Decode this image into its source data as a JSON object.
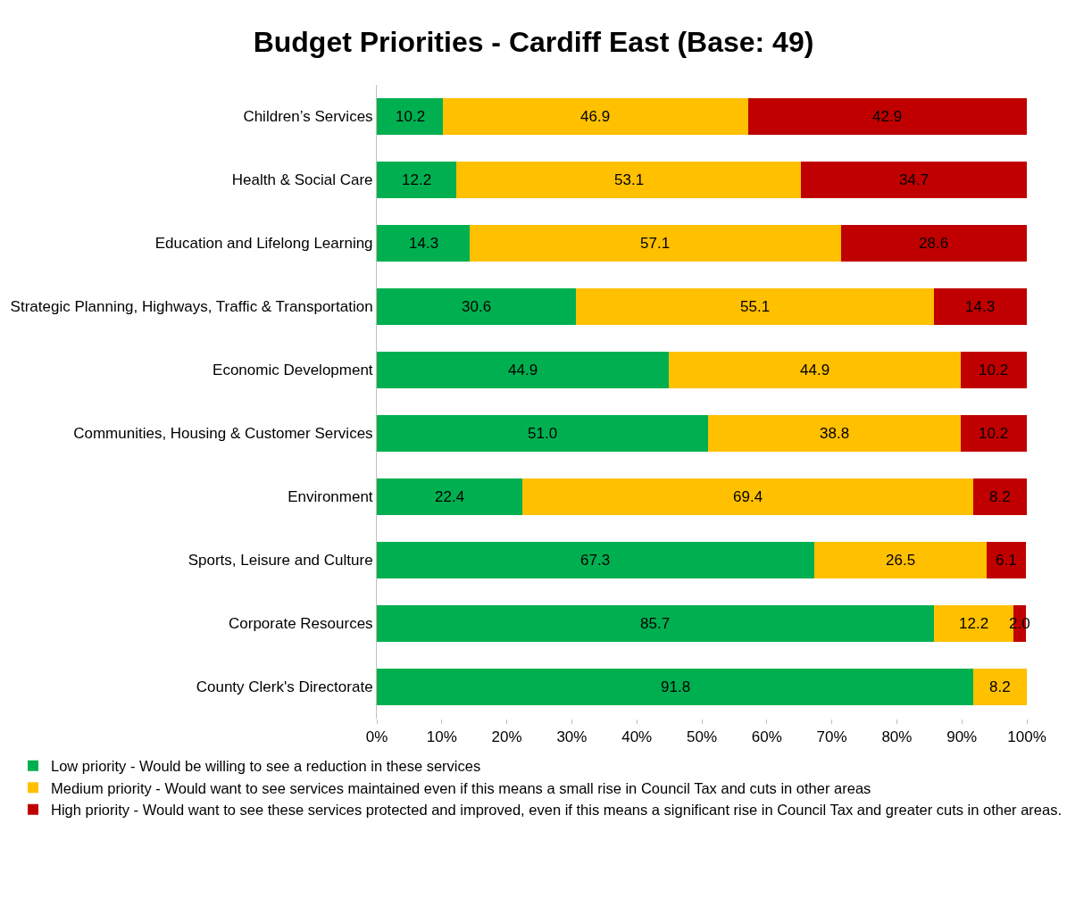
{
  "chart_data": {
    "type": "bar",
    "orientation": "horizontal",
    "stacked": true,
    "title": "Budget Priorities - Cardiff East (Base: 49)",
    "categories": [
      "Children’s Services",
      "Health & Social Care",
      "Education and Lifelong Learning",
      "Strategic Planning, Highways, Traffic & Transportation",
      "Economic Development",
      "Communities, Housing & Customer Services",
      "Environment",
      "Sports, Leisure and Culture",
      "Corporate Resources",
      "County Clerk's Directorate"
    ],
    "series": [
      {
        "name": "Low priority - Would be willing to see a reduction in these services",
        "color": "#00b050",
        "values": [
          10.2,
          12.2,
          14.3,
          30.6,
          44.9,
          51.0,
          22.4,
          67.3,
          85.7,
          91.8
        ],
        "value_labels": [
          "10.2",
          "12.2",
          "14.3",
          "30.6",
          "44.9",
          "51.0",
          "22.4",
          "67.3",
          "85.7",
          "91.8"
        ]
      },
      {
        "name": "Medium priority - Would want to see services maintained even if this means a small rise in Council Tax and cuts in other areas",
        "color": "#ffc000",
        "values": [
          46.9,
          53.1,
          57.1,
          55.1,
          44.9,
          38.8,
          69.4,
          26.5,
          12.2,
          8.2
        ],
        "value_labels": [
          "46.9",
          "53.1",
          "57.1",
          "55.1",
          "44.9",
          "38.8",
          "69.4",
          "26.5",
          "12.2",
          "8.2"
        ]
      },
      {
        "name": "High priority - Would want to see these services protected and improved, even if this means a significant rise in Council Tax and greater cuts in other areas.",
        "color": "#c00000",
        "values": [
          42.9,
          34.7,
          28.6,
          14.3,
          10.2,
          10.2,
          8.2,
          6.1,
          2.0,
          null
        ],
        "value_labels": [
          "42.9",
          "34.7",
          "28.6",
          "14.3",
          "10.2",
          "10.2",
          "8.2",
          "6.1",
          "2.0",
          null
        ]
      }
    ],
    "xlim": [
      0,
      100
    ],
    "xticks": [
      {
        "value": 0,
        "label": "0%"
      },
      {
        "value": 10,
        "label": "10%"
      },
      {
        "value": 20,
        "label": "20%"
      },
      {
        "value": 30,
        "label": "30%"
      },
      {
        "value": 40,
        "label": "40%"
      },
      {
        "value": 50,
        "label": "50%"
      },
      {
        "value": 60,
        "label": "60%"
      },
      {
        "value": 70,
        "label": "70%"
      },
      {
        "value": 80,
        "label": "80%"
      },
      {
        "value": 90,
        "label": "90%"
      },
      {
        "value": 100,
        "label": "100%"
      }
    ],
    "grid": false,
    "legend": "bottom"
  }
}
